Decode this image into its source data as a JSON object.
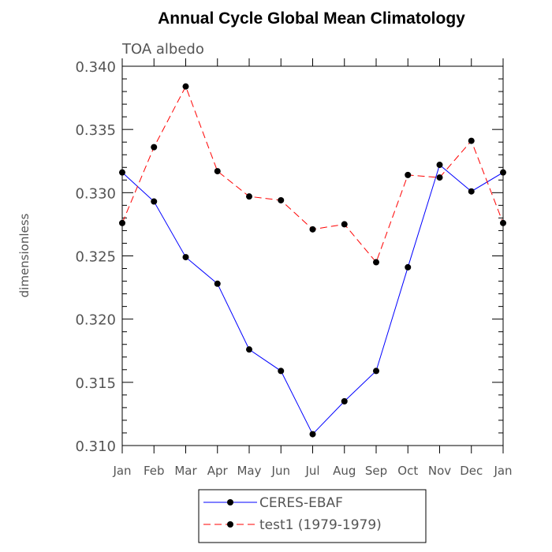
{
  "chart_data": {
    "type": "line",
    "title": "Annual Cycle Global Mean Climatology",
    "subtitle": "TOA albedo",
    "ylabel": "dimensionless",
    "xlabel": "",
    "categories": [
      "Jan",
      "Feb",
      "Mar",
      "Apr",
      "May",
      "Jun",
      "Jul",
      "Aug",
      "Sep",
      "Oct",
      "Nov",
      "Dec",
      "Jan"
    ],
    "ylim": [
      0.31,
      0.34
    ],
    "yticks": [
      "0.310",
      "0.315",
      "0.320",
      "0.325",
      "0.330",
      "0.335",
      "0.340"
    ],
    "series": [
      {
        "name": "CERES-EBAF",
        "color": "#0000ff",
        "style": "solid",
        "marker": "filled-circle",
        "values": [
          0.3316,
          0.3293,
          0.3249,
          0.3228,
          0.3176,
          0.3159,
          0.3109,
          0.3135,
          0.3159,
          0.3241,
          0.3322,
          0.3301,
          0.3316
        ]
      },
      {
        "name": "test1 (1979-1979)",
        "color": "#ff0000",
        "style": "dashed",
        "marker": "filled-circle",
        "values": [
          0.3276,
          0.3336,
          0.3384,
          0.3317,
          0.3297,
          0.3294,
          0.3271,
          0.3275,
          0.3245,
          0.3314,
          0.3312,
          0.3341,
          0.3276
        ]
      }
    ],
    "grid": false,
    "legend_position": "bottom-center"
  }
}
